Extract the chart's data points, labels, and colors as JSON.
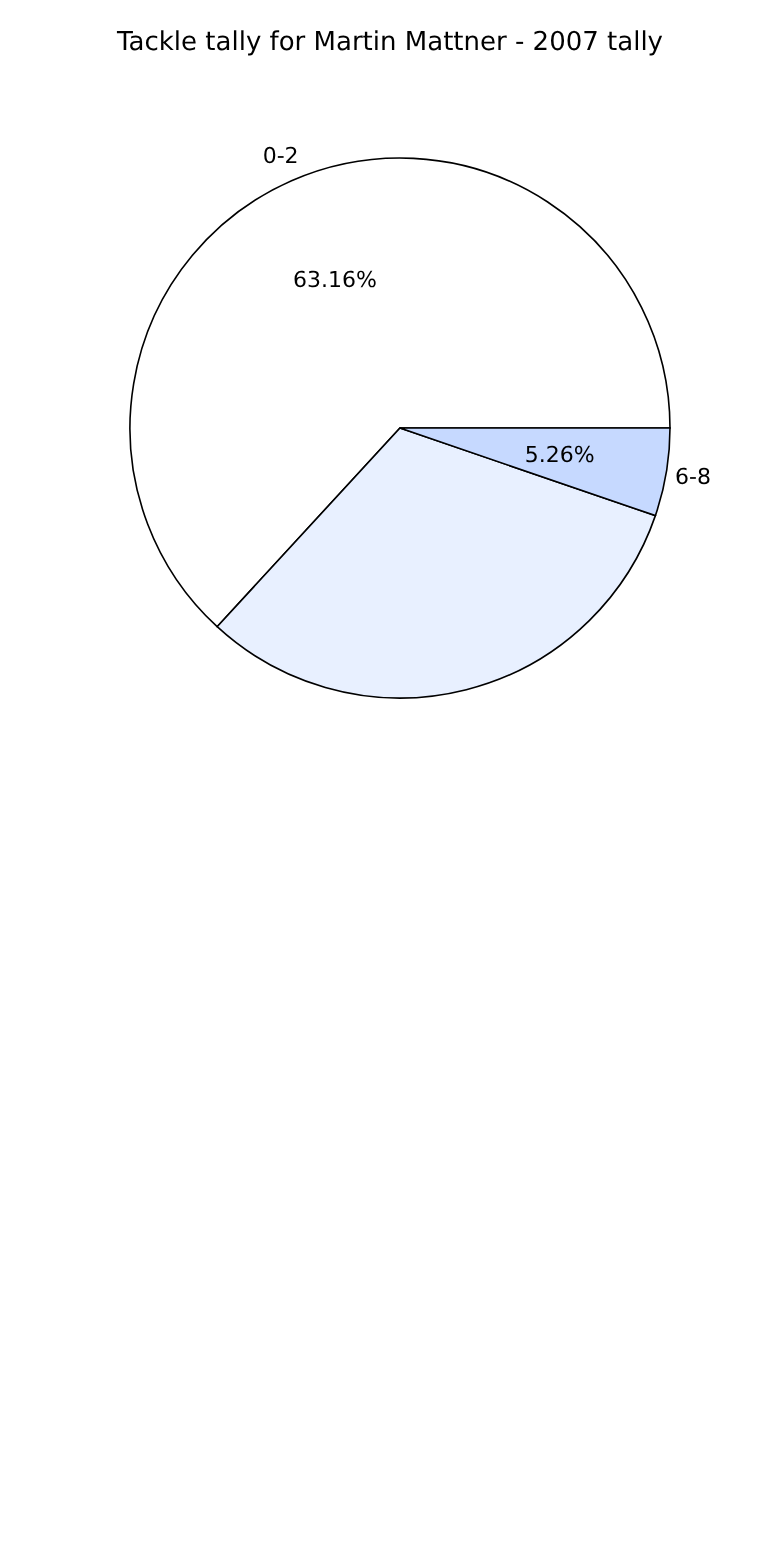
{
  "chart_data": {
    "type": "pie",
    "title": "Tackle tally for Martin Mattner - 2007 tally",
    "categories": [
      "0-2",
      null,
      "6-8"
    ],
    "values": [
      63.16,
      31.58,
      5.26
    ],
    "colors": [
      "#ffffff",
      "#e8f0ff",
      "#c6d9ff"
    ],
    "value_labels": [
      "63.16%",
      null,
      "5.26%"
    ]
  }
}
